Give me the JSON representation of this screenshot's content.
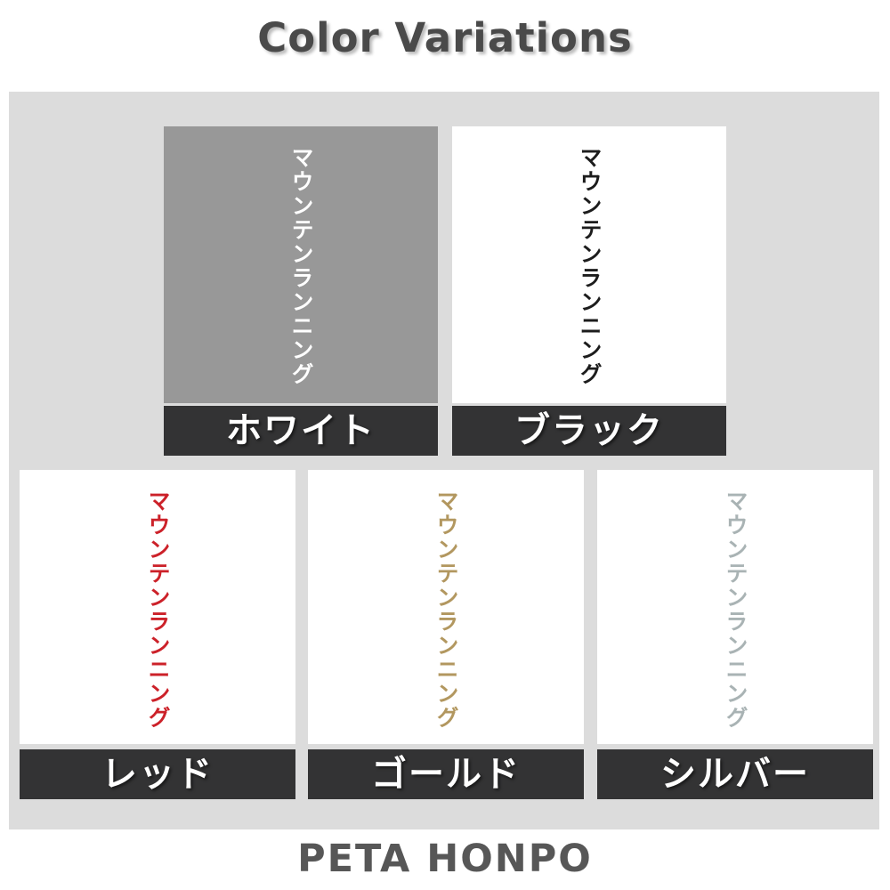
{
  "page": {
    "title": "Color Variations",
    "footer": "PETA HONPO",
    "background": "#ffffff",
    "panel_background": "#dcdcdc",
    "label_bar_background": "#333334",
    "label_text_color": "#ffffff",
    "title_color": "#4a4a4a",
    "footer_color": "#575757"
  },
  "swatches": [
    {
      "id": "white",
      "label": "ホワイト",
      "vertical_text": "マウンテンランニング",
      "swatch_background": "#989898",
      "text_color": "#ffffff"
    },
    {
      "id": "black",
      "label": "ブラック",
      "vertical_text": "マウンテンランニング",
      "swatch_background": "#ffffff",
      "text_color": "#1c1c1c"
    },
    {
      "id": "red",
      "label": "レッド",
      "vertical_text": "マウンテンランニング",
      "swatch_background": "#ffffff",
      "text_color": "#cc2129"
    },
    {
      "id": "gold",
      "label": "ゴールド",
      "vertical_text": "マウンテンランニング",
      "swatch_background": "#ffffff",
      "text_color": "#b2975f"
    },
    {
      "id": "silver",
      "label": "シルバー",
      "vertical_text": "マウンテンランニング",
      "swatch_background": "#ffffff",
      "text_color": "#a9b3b4"
    }
  ]
}
